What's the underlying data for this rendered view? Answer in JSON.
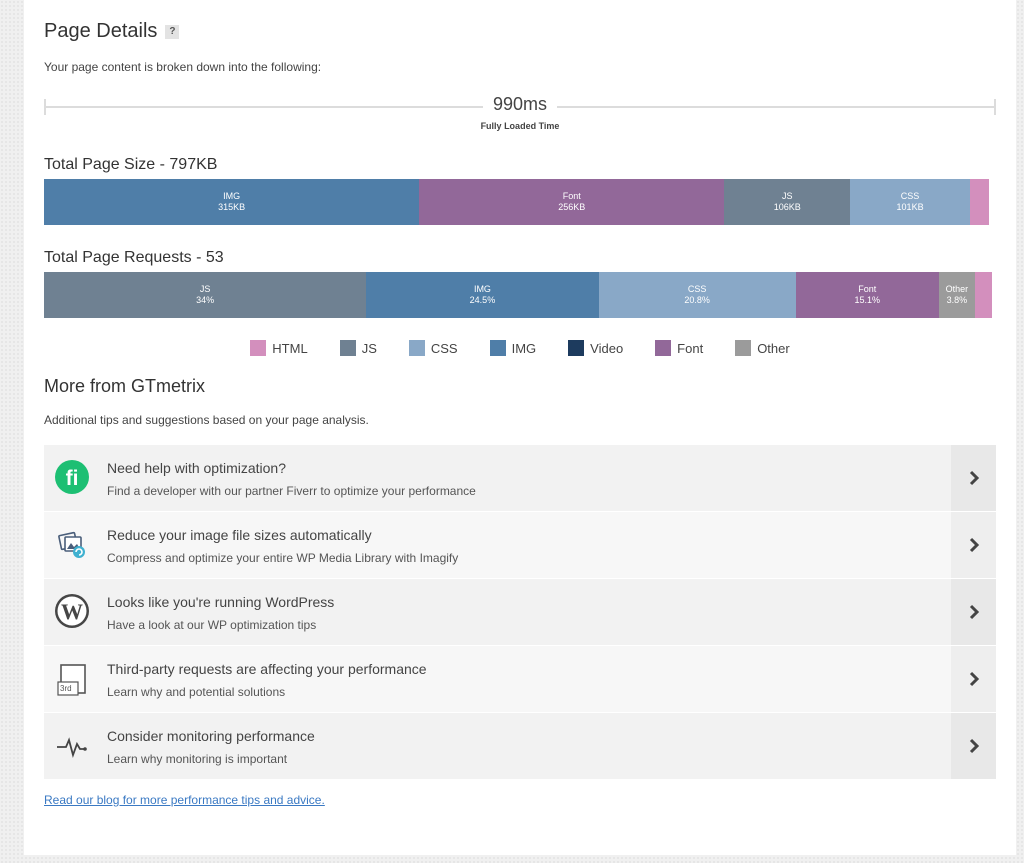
{
  "page_details": {
    "title": "Page Details",
    "help": "?",
    "subtitle": "Your page content is broken down into the following:"
  },
  "timeline": {
    "value": "990ms",
    "label": "Fully Loaded Time"
  },
  "size": {
    "title": "Total Page Size - 797KB",
    "segments": [
      {
        "label": "IMG",
        "value": "315KB",
        "color": "#4f7ea8",
        "pct": 39.7
      },
      {
        "label": "Font",
        "value": "256KB",
        "color": "#926899",
        "pct": 32.3
      },
      {
        "label": "JS",
        "value": "106KB",
        "color": "#6f8192",
        "pct": 13.3
      },
      {
        "label": "CSS",
        "value": "101KB",
        "color": "#89a8c7",
        "pct": 12.7
      },
      {
        "label": "",
        "value": "",
        "color": "#d38fbd",
        "pct": 2.0
      }
    ]
  },
  "requests": {
    "title": "Total Page Requests - 53",
    "segments": [
      {
        "label": "JS",
        "value": "34%",
        "color": "#6f8192",
        "pct": 34.0
      },
      {
        "label": "IMG",
        "value": "24.5%",
        "color": "#4f7ea8",
        "pct": 24.5
      },
      {
        "label": "CSS",
        "value": "20.8%",
        "color": "#89a8c7",
        "pct": 20.8
      },
      {
        "label": "Font",
        "value": "15.1%",
        "color": "#926899",
        "pct": 15.1
      },
      {
        "label": "Other",
        "value": "3.8%",
        "color": "#9b9b9b",
        "pct": 3.8
      },
      {
        "label": "",
        "value": "",
        "color": "#d38fbd",
        "pct": 1.8
      }
    ]
  },
  "legend": [
    {
      "label": "HTML",
      "color": "#d38fbd"
    },
    {
      "label": "JS",
      "color": "#6f8192"
    },
    {
      "label": "CSS",
      "color": "#89a8c7"
    },
    {
      "label": "IMG",
      "color": "#4f7ea8"
    },
    {
      "label": "Video",
      "color": "#1d3b5e"
    },
    {
      "label": "Font",
      "color": "#926899"
    },
    {
      "label": "Other",
      "color": "#9b9b9b"
    }
  ],
  "more": {
    "title": "More from GTmetrix",
    "subtitle": "Additional tips and suggestions based on your page analysis."
  },
  "tips": [
    {
      "icon": "fiverr-icon",
      "title": "Need help with optimization?",
      "desc": "Find a developer with our partner Fiverr to optimize your performance"
    },
    {
      "icon": "imagify-icon",
      "title": "Reduce your image file sizes automatically",
      "desc": "Compress and optimize your entire WP Media Library with Imagify"
    },
    {
      "icon": "wordpress-icon",
      "title": "Looks like you're running WordPress",
      "desc": "Have a look at our WP optimization tips"
    },
    {
      "icon": "third-party-icon",
      "title": "Third-party requests are affecting your performance",
      "desc": "Learn why and potential solutions",
      "icon_text": "3rd"
    },
    {
      "icon": "heartbeat-icon",
      "title": "Consider monitoring performance",
      "desc": "Learn why monitoring is important"
    }
  ],
  "blog_link": "Read our blog for more performance tips and advice."
}
